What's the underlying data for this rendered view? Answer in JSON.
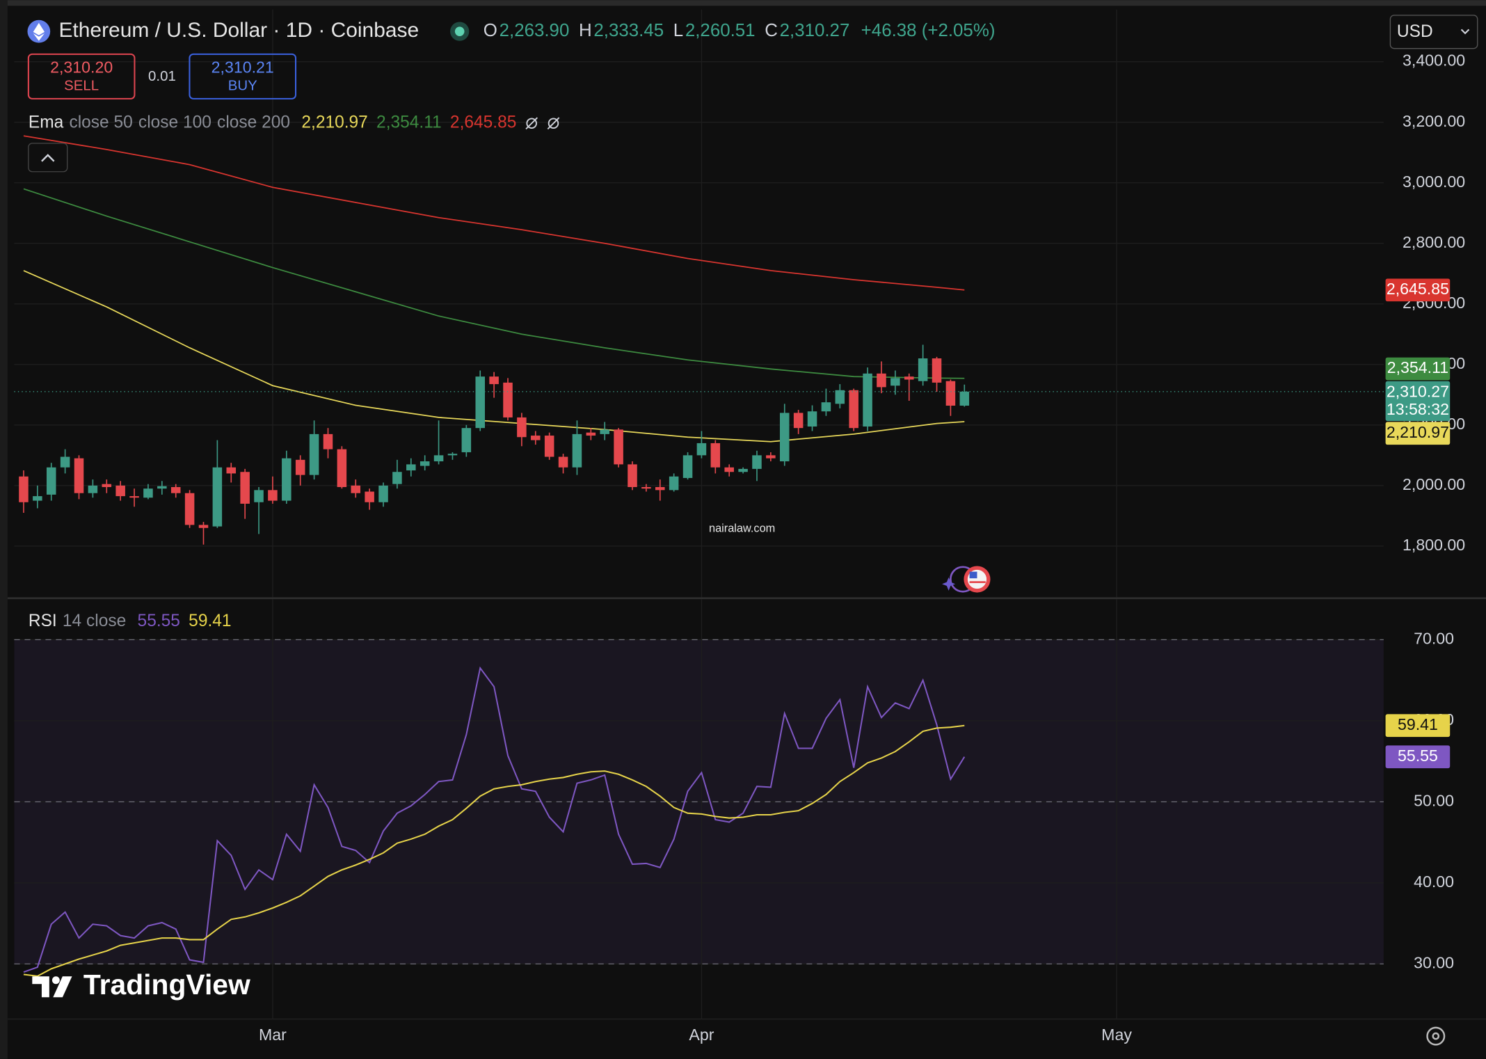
{
  "header": {
    "ohlc": [
      {
        "key": "O",
        "value": "2,263.90"
      },
      {
        "key": "H",
        "value": "2,333.45"
      },
      {
        "key": "L",
        "value": "2,260.51"
      },
      {
        "key": "C",
        "value": "2,310.27"
      }
    ],
    "change": "+46.38 (+2.05%)",
    "currency": "USD"
  },
  "trade": {
    "sell_price": "2,310.20",
    "sell": "SELL",
    "spread": "0.01",
    "buy_price": "2,310.21",
    "buy": "BUY"
  },
  "watermark": "nairalaw.com",
  "brand": "TradingView",
  "chart_data": [
    {
      "type": "candlestick",
      "title": "Ethereum / U.S. Dollar · 1D · Coinbase",
      "indicator": "Ema",
      "x": [
        0,
        1,
        2,
        3,
        4,
        5,
        6,
        7,
        8,
        9,
        10,
        11,
        12,
        13,
        14,
        15,
        16,
        17,
        18,
        19,
        20,
        21,
        22,
        23,
        24,
        25,
        26,
        27,
        28,
        29,
        30,
        31,
        32,
        33,
        34,
        35,
        36,
        37,
        38,
        39,
        40,
        41,
        42,
        43,
        44,
        45,
        46,
        47,
        48,
        49,
        50,
        51,
        52,
        53,
        54,
        55,
        56,
        57,
        58,
        59,
        60,
        61,
        62,
        63,
        64,
        65,
        66,
        67,
        68
      ],
      "open": [
        2030,
        1950,
        1970,
        2060,
        2090,
        1975,
        2005,
        2000,
        1965,
        1960,
        1990,
        1995,
        1975,
        1870,
        1865,
        2060,
        2045,
        1945,
        1985,
        1950,
        2085,
        2035,
        2170,
        2120,
        2000,
        1980,
        1945,
        2005,
        2050,
        2065,
        2080,
        2100,
        2110,
        2190,
        2360,
        2340,
        2225,
        2165,
        2165,
        2095,
        2060,
        2175,
        2170,
        2185,
        2070,
        1995,
        1995,
        1985,
        2025,
        2100,
        2140,
        2060,
        2045,
        2055,
        2100,
        2080,
        2240,
        2195,
        2245,
        2270,
        2315,
        2195,
        2370,
        2330,
        2360,
        2345,
        2420,
        2345,
        2263.9
      ],
      "high": [
        2050,
        2000,
        2075,
        2120,
        2100,
        2020,
        2020,
        2015,
        1990,
        2005,
        2015,
        2005,
        1985,
        1880,
        2150,
        2075,
        2055,
        1995,
        2030,
        2115,
        2100,
        2215,
        2190,
        2130,
        2020,
        1990,
        2010,
        2085,
        2090,
        2100,
        2215,
        2110,
        2200,
        2380,
        2375,
        2355,
        2240,
        2180,
        2175,
        2105,
        2215,
        2190,
        2210,
        2190,
        2080,
        2005,
        2020,
        2040,
        2110,
        2180,
        2150,
        2070,
        2060,
        2115,
        2110,
        2270,
        2250,
        2265,
        2320,
        2335,
        2320,
        2390,
        2410,
        2380,
        2370,
        2465,
        2425,
        2350,
        2333.45
      ],
      "low": [
        1910,
        1925,
        1950,
        2040,
        1955,
        1960,
        1975,
        1950,
        1930,
        1955,
        1970,
        1960,
        1860,
        1805,
        1860,
        2010,
        1890,
        1840,
        1940,
        1940,
        2000,
        2020,
        2090,
        1990,
        1960,
        1920,
        1930,
        1990,
        2030,
        2050,
        2070,
        2085,
        2095,
        2180,
        2290,
        2215,
        2130,
        2135,
        2085,
        2040,
        2035,
        2150,
        2150,
        2060,
        1985,
        1980,
        1950,
        1980,
        2020,
        2090,
        2040,
        2030,
        2040,
        2015,
        2080,
        2065,
        2170,
        2180,
        2230,
        2255,
        2180,
        2180,
        2305,
        2300,
        2280,
        2330,
        2310,
        2230,
        2260.51
      ],
      "close": [
        1945,
        1965,
        2060,
        2095,
        1975,
        2000,
        1995,
        1965,
        1960,
        1990,
        1998,
        1975,
        1870,
        1860,
        2060,
        2040,
        1940,
        1985,
        1950,
        2090,
        2035,
        2170,
        2120,
        1995,
        1975,
        1945,
        2000,
        2045,
        2070,
        2080,
        2100,
        2105,
        2190,
        2360,
        2335,
        2225,
        2160,
        2150,
        2095,
        2060,
        2170,
        2165,
        2185,
        2070,
        1995,
        1990,
        1985,
        2030,
        2100,
        2140,
        2060,
        2045,
        2055,
        2100,
        2090,
        2240,
        2190,
        2245,
        2275,
        2315,
        2190,
        2370,
        2325,
        2355,
        2350,
        2420,
        2340,
        2263.9,
        2310.27
      ],
      "up_color": "#3d9a85",
      "down_color": "#e5484d",
      "last_label": "2,310.27",
      "countdown": "13:58:32",
      "lines": [
        {
          "name": "close 50",
          "color": "#e8d85a",
          "x": [
            0,
            6,
            12,
            18,
            24,
            30,
            36,
            42,
            48,
            54,
            60,
            66,
            68
          ],
          "values": [
            2710,
            2590,
            2455,
            2330,
            2265,
            2225,
            2205,
            2185,
            2160,
            2145,
            2170,
            2205,
            2210.97
          ],
          "last_label": "2,210.97"
        },
        {
          "name": "close 100",
          "color": "#3d8b40",
          "x": [
            0,
            6,
            12,
            18,
            24,
            30,
            36,
            42,
            48,
            54,
            60,
            66,
            68
          ],
          "values": [
            2980,
            2890,
            2805,
            2720,
            2640,
            2560,
            2500,
            2455,
            2415,
            2385,
            2360,
            2355,
            2354.11
          ],
          "last_label": "2,354.11"
        },
        {
          "name": "close 200",
          "color": "#d9352f",
          "x": [
            0,
            6,
            12,
            18,
            24,
            30,
            36,
            42,
            48,
            54,
            60,
            66,
            68
          ],
          "values": [
            3155,
            3110,
            3060,
            2985,
            2935,
            2885,
            2845,
            2800,
            2750,
            2710,
            2680,
            2655,
            2645.85
          ],
          "last_label": "2,645.85"
        }
      ],
      "xlim": [
        -0.68,
        98.3
      ],
      "ylim": [
        1631,
        3572
      ],
      "yticks": [
        {
          "value": 1800,
          "label": "1,800.00"
        },
        {
          "value": 2000,
          "label": "2,000.00"
        },
        {
          "value": 2200,
          "label": "2,200.00"
        },
        {
          "value": 2400,
          "label": "2,400.00"
        },
        {
          "value": 2600,
          "label": "2,600.00"
        },
        {
          "value": 2800,
          "label": "2,800.00"
        },
        {
          "value": 3000,
          "label": "3,000.00"
        },
        {
          "value": 3200,
          "label": "3,200.00"
        },
        {
          "value": 3400,
          "label": "3,400.00"
        }
      ],
      "grid": true
    },
    {
      "type": "line",
      "indicator": "RSI",
      "params": "14 close",
      "x": [
        0,
        1,
        2,
        3,
        4,
        5,
        6,
        7,
        8,
        9,
        10,
        11,
        12,
        13,
        14,
        15,
        16,
        17,
        18,
        19,
        20,
        21,
        22,
        23,
        24,
        25,
        26,
        27,
        28,
        29,
        30,
        31,
        32,
        33,
        34,
        35,
        36,
        37,
        38,
        39,
        40,
        41,
        42,
        43,
        44,
        45,
        46,
        47,
        48,
        49,
        50,
        51,
        52,
        53,
        54,
        55,
        56,
        57,
        58,
        59,
        60,
        61,
        62,
        63,
        64,
        65,
        66,
        67,
        68
      ],
      "series": [
        {
          "color": "#7e57c2",
          "values": [
            29.0,
            29.6,
            34.9,
            36.4,
            33.2,
            34.9,
            34.7,
            33.5,
            33.2,
            34.7,
            35.1,
            34.3,
            30.5,
            30.2,
            45.2,
            43.4,
            39.2,
            41.6,
            40.4,
            46.0,
            43.9,
            52.1,
            49.3,
            44.5,
            44.0,
            42.5,
            46.4,
            48.6,
            49.5,
            50.9,
            52.5,
            52.7,
            58.3,
            66.5,
            64.2,
            55.7,
            51.6,
            51.3,
            48.1,
            46.3,
            52.3,
            52.7,
            53.3,
            46.0,
            42.3,
            42.4,
            41.9,
            45.4,
            51.3,
            53.6,
            47.8,
            47.5,
            48.6,
            51.9,
            51.8,
            60.9,
            56.6,
            56.6,
            60.3,
            62.6,
            54.2,
            64.2,
            60.4,
            62.2,
            61.5,
            65.0,
            59.5,
            52.8,
            55.55
          ],
          "value_label": "55.55"
        },
        {
          "color": "#e6d34a",
          "values": [
            28.7,
            28.5,
            29.4,
            30.0,
            30.6,
            31.1,
            31.6,
            32.3,
            32.6,
            32.9,
            33.2,
            33.2,
            33.0,
            33.0,
            34.3,
            35.5,
            35.8,
            36.3,
            36.9,
            37.6,
            38.4,
            39.6,
            40.8,
            41.6,
            42.2,
            42.9,
            43.7,
            44.9,
            45.4,
            46.0,
            47.0,
            47.8,
            49.2,
            50.7,
            51.6,
            51.9,
            52.1,
            52.5,
            52.8,
            53.0,
            53.4,
            53.7,
            53.8,
            53.4,
            52.7,
            51.9,
            50.7,
            49.3,
            48.6,
            48.5,
            48.2,
            48.0,
            48.1,
            48.4,
            48.4,
            48.7,
            48.9,
            49.8,
            50.9,
            52.5,
            53.6,
            54.8,
            55.4,
            56.2,
            57.4,
            58.7,
            59.1,
            59.2,
            59.41
          ],
          "value_label": "59.41"
        }
      ],
      "band": [
        30,
        70
      ],
      "band_color": "rgba(126,87,194,0.10)",
      "dashed_levels": [
        30,
        50,
        70
      ],
      "xlim": [
        -0.68,
        98.3
      ],
      "xticks": [
        {
          "value": 18,
          "label": "Mar"
        },
        {
          "value": 49,
          "label": "Apr"
        },
        {
          "value": 79,
          "label": "May"
        }
      ],
      "ylim": [
        23.2,
        75.0
      ],
      "yticks": [
        {
          "value": 30,
          "label": "30.00"
        },
        {
          "value": 40,
          "label": "40.00"
        },
        {
          "value": 50,
          "label": "50.00"
        },
        {
          "value": 60,
          "label": "60.00"
        },
        {
          "value": 70,
          "label": "70.00"
        }
      ],
      "grid": true
    }
  ]
}
